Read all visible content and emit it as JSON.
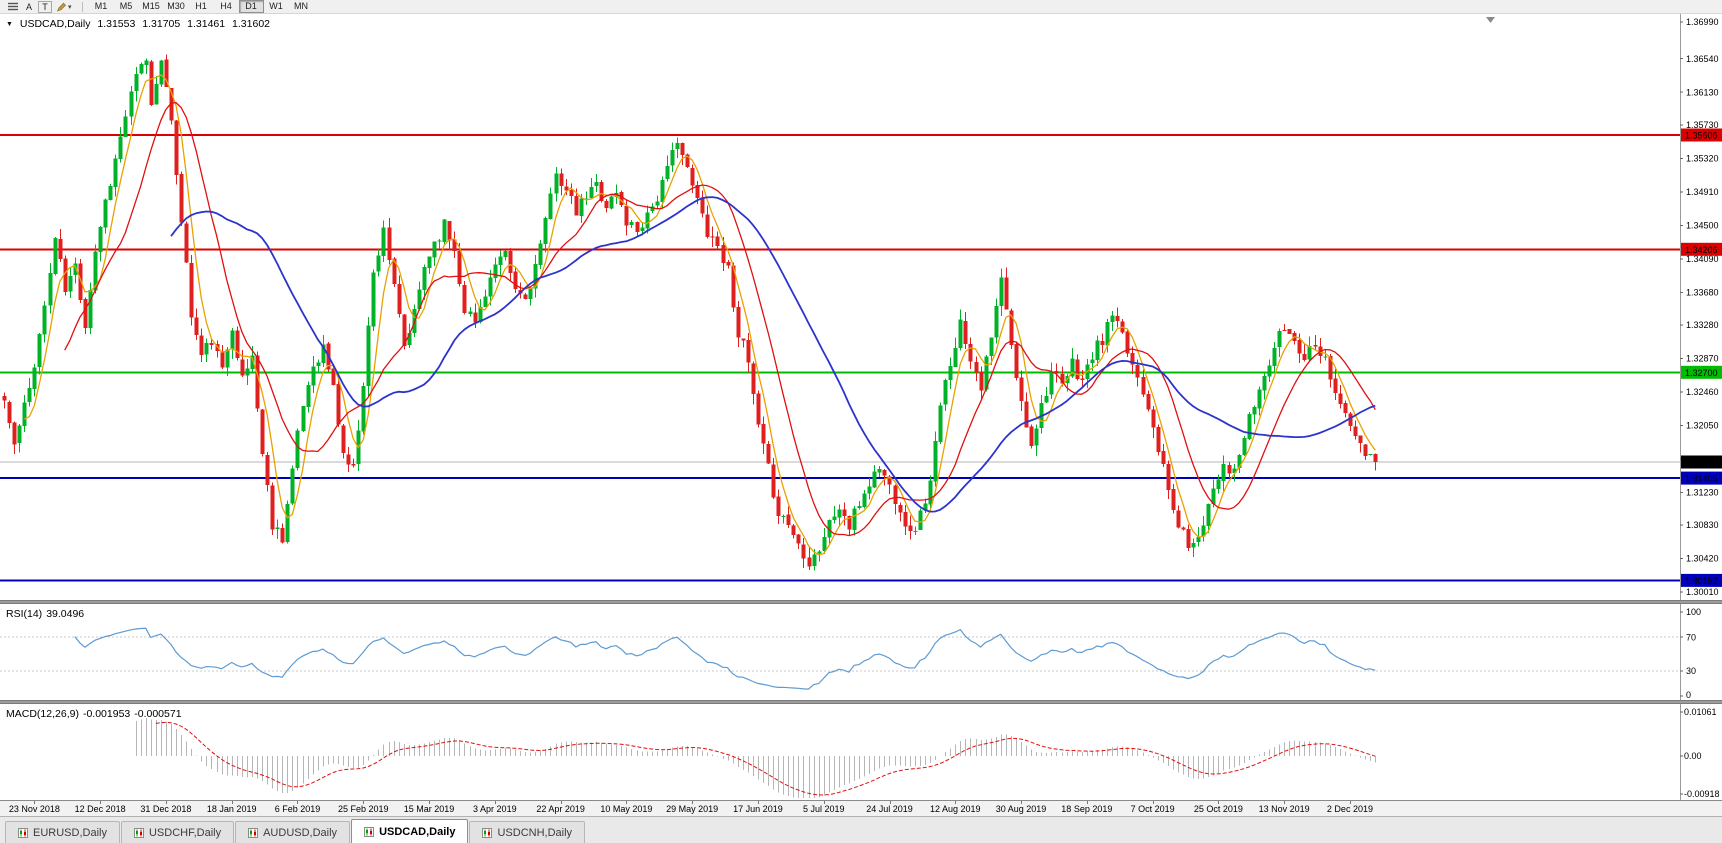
{
  "toolbar": {
    "a_label": "A",
    "t_label": "T",
    "periods": [
      "M1",
      "M5",
      "M15",
      "M30",
      "H1",
      "H4",
      "D1",
      "W1",
      "MN"
    ],
    "active_period": "D1"
  },
  "chart": {
    "title": "USDCAD,Daily",
    "ohlc": {
      "open": "1.31553",
      "high": "1.31705",
      "low": "1.31461",
      "close": "1.31602"
    },
    "price_axis": {
      "max": 1.3699,
      "min": 1.3001,
      "ticks": [
        "1.36990",
        "1.36540",
        "1.36130",
        "1.35730",
        "1.35320",
        "1.34910",
        "1.34500",
        "1.34090",
        "1.33680",
        "1.33280",
        "1.32870",
        "1.32460",
        "1.32050",
        "1.31640",
        "1.31230",
        "1.30830",
        "1.30420",
        "1.30010"
      ]
    },
    "levels": [
      {
        "label": "1.35606",
        "color": "#dd0000",
        "kind": "resistance"
      },
      {
        "label": "1.34206",
        "color": "#dd0000",
        "kind": "resistance"
      },
      {
        "label": "1.32700",
        "color": "#00bb00",
        "kind": "support"
      },
      {
        "label": "1.31405",
        "color": "#0000bb",
        "kind": "support"
      },
      {
        "label": "1.30152",
        "color": "#0000bb",
        "kind": "support"
      }
    ],
    "current_price": {
      "label": "1.31602"
    },
    "moving_averages": [
      {
        "period": 5,
        "color": "#e8a200",
        "width": 1.3,
        "name": "ma-fast"
      },
      {
        "period": 13,
        "color": "#e01010",
        "width": 1.3,
        "name": "ma-mid"
      },
      {
        "period": 34,
        "color": "#2c34cc",
        "width": 1.8,
        "name": "ma-slow"
      }
    ],
    "series": {
      "bars": 272,
      "seed": 11,
      "noise": 0.0009,
      "wick": 0.0013,
      "last_close": 1.31602,
      "anchors": [
        [
          0,
          1.3235
        ],
        [
          2,
          1.318
        ],
        [
          5,
          1.325
        ],
        [
          8,
          1.335
        ],
        [
          10,
          1.3435
        ],
        [
          12,
          1.337
        ],
        [
          14,
          1.34
        ],
        [
          16,
          1.333
        ],
        [
          18,
          1.342
        ],
        [
          20,
          1.348
        ],
        [
          22,
          1.353
        ],
        [
          24,
          1.3585
        ],
        [
          26,
          1.363
        ],
        [
          28,
          1.3655
        ],
        [
          29,
          1.3595
        ],
        [
          31,
          1.366
        ],
        [
          33,
          1.357
        ],
        [
          35,
          1.346
        ],
        [
          37,
          1.334
        ],
        [
          39,
          1.329
        ],
        [
          41,
          1.331
        ],
        [
          43,
          1.327
        ],
        [
          45,
          1.333
        ],
        [
          47,
          1.326
        ],
        [
          49,
          1.329
        ],
        [
          51,
          1.317
        ],
        [
          53,
          1.3085
        ],
        [
          55,
          1.307
        ],
        [
          57,
          1.315
        ],
        [
          59,
          1.323
        ],
        [
          61,
          1.328
        ],
        [
          63,
          1.33
        ],
        [
          65,
          1.325
        ],
        [
          67,
          1.317
        ],
        [
          69,
          1.315
        ],
        [
          71,
          1.326
        ],
        [
          73,
          1.339
        ],
        [
          75,
          1.345
        ],
        [
          77,
          1.337
        ],
        [
          79,
          1.33
        ],
        [
          81,
          1.334
        ],
        [
          83,
          1.34
        ],
        [
          85,
          1.343
        ],
        [
          87,
          1.345
        ],
        [
          89,
          1.342
        ],
        [
          91,
          1.335
        ],
        [
          93,
          1.333
        ],
        [
          95,
          1.337
        ],
        [
          97,
          1.34
        ],
        [
          99,
          1.341
        ],
        [
          101,
          1.337
        ],
        [
          103,
          1.336
        ],
        [
          105,
          1.34
        ],
        [
          107,
          1.345
        ],
        [
          109,
          1.352
        ],
        [
          111,
          1.349
        ],
        [
          113,
          1.3465
        ],
        [
          115,
          1.3485
        ],
        [
          117,
          1.35
        ],
        [
          119,
          1.3475
        ],
        [
          121,
          1.349
        ],
        [
          123,
          1.3455
        ],
        [
          125,
          1.3445
        ],
        [
          127,
          1.3465
        ],
        [
          129,
          1.3485
        ],
        [
          131,
          1.3515
        ],
        [
          133,
          1.356
        ],
        [
          135,
          1.3515
        ],
        [
          137,
          1.348
        ],
        [
          139,
          1.3445
        ],
        [
          141,
          1.3425
        ],
        [
          143,
          1.3395
        ],
        [
          145,
          1.332
        ],
        [
          147,
          1.328
        ],
        [
          149,
          1.32
        ],
        [
          151,
          1.315
        ],
        [
          153,
          1.31
        ],
        [
          155,
          1.3085
        ],
        [
          157,
          1.306
        ],
        [
          159,
          1.304
        ],
        [
          161,
          1.3055
        ],
        [
          163,
          1.3085
        ],
        [
          165,
          1.3105
        ],
        [
          167,
          1.308
        ],
        [
          169,
          1.311
        ],
        [
          171,
          1.3135
        ],
        [
          173,
          1.3155
        ],
        [
          175,
          1.313
        ],
        [
          177,
          1.3105
        ],
        [
          179,
          1.307
        ],
        [
          181,
          1.3095
        ],
        [
          183,
          1.3135
        ],
        [
          185,
          1.3225
        ],
        [
          187,
          1.3285
        ],
        [
          189,
          1.333
        ],
        [
          191,
          1.329
        ],
        [
          193,
          1.3255
        ],
        [
          195,
          1.331
        ],
        [
          197,
          1.3385
        ],
        [
          199,
          1.33
        ],
        [
          201,
          1.323
        ],
        [
          203,
          1.3185
        ],
        [
          205,
          1.323
        ],
        [
          207,
          1.327
        ],
        [
          209,
          1.325
        ],
        [
          211,
          1.328
        ],
        [
          213,
          1.326
        ],
        [
          215,
          1.329
        ],
        [
          217,
          1.331
        ],
        [
          219,
          1.334
        ],
        [
          221,
          1.331
        ],
        [
          223,
          1.328
        ],
        [
          225,
          1.325
        ],
        [
          227,
          1.321
        ],
        [
          229,
          1.315
        ],
        [
          231,
          1.31
        ],
        [
          233,
          1.307
        ],
        [
          235,
          1.3055
        ],
        [
          237,
          1.309
        ],
        [
          239,
          1.313
        ],
        [
          241,
          1.316
        ],
        [
          243,
          1.3145
        ],
        [
          245,
          1.319
        ],
        [
          247,
          1.323
        ],
        [
          249,
          1.3265
        ],
        [
          251,
          1.33
        ],
        [
          253,
          1.3325
        ],
        [
          255,
          1.331
        ],
        [
          257,
          1.329
        ],
        [
          259,
          1.331
        ],
        [
          261,
          1.3285
        ],
        [
          263,
          1.325
        ],
        [
          265,
          1.3215
        ],
        [
          267,
          1.319
        ],
        [
          269,
          1.317
        ],
        [
          271,
          1.31602
        ]
      ]
    },
    "date_axis": [
      "23 Nov 2018",
      "12 Dec 2018",
      "31 Dec 2018",
      "18 Jan 2019",
      "6 Feb 2019",
      "25 Feb 2019",
      "15 Mar 2019",
      "3 Apr 2019",
      "22 Apr 2019",
      "10 May 2019",
      "29 May 2019",
      "17 Jun 2019",
      "5 Jul 2019",
      "24 Jul 2019",
      "12 Aug 2019",
      "30 Aug 2019",
      "18 Sep 2019",
      "7 Oct 2019",
      "25 Oct 2019",
      "13 Nov 2019",
      "2 Dec 2019"
    ]
  },
  "rsi": {
    "name": "RSI(14)",
    "value": "39.0496",
    "axis": [
      "100",
      "70",
      "30",
      "0"
    ],
    "upper": 70,
    "lower": 30,
    "color": "#5e9bd2"
  },
  "macd": {
    "name": "MACD(12,26,9)",
    "main_value": "-0.001953",
    "signal_value": "-0.000571",
    "axis": [
      "0.01061",
      "0.00",
      "-0.00918"
    ],
    "hist_color": "#b6b6b6",
    "signal_color": "#e01010"
  },
  "colors": {
    "up": "#00b228",
    "down": "#e01f1f",
    "current_line": "#b4b4b4",
    "badge_black": "#000000",
    "axis_line": "#9a9a9a",
    "panel_bg": "#ffffff"
  },
  "tabs": [
    {
      "label": "EURUSD,Daily",
      "active": false
    },
    {
      "label": "USDCHF,Daily",
      "active": false
    },
    {
      "label": "AUDUSD,Daily",
      "active": false
    },
    {
      "label": "USDCAD,Daily",
      "active": true
    },
    {
      "label": "USDCNH,Daily",
      "active": false
    }
  ]
}
